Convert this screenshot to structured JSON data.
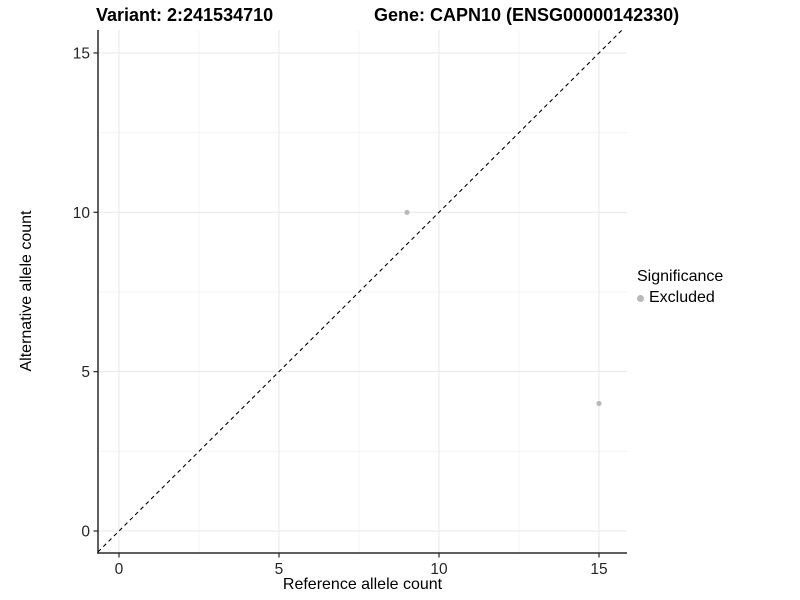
{
  "chart_data": {
    "type": "scatter",
    "titles": {
      "left": "Variant: 2:241534710",
      "right": "Gene: CAPN10 (ENSG00000142330)"
    },
    "xlabel": "Reference allele count",
    "ylabel": "Alternative allele count",
    "xlim": [
      -0.656,
      15.875
    ],
    "ylim": [
      -0.69,
      15.72
    ],
    "x_ticks": [
      0,
      5,
      10,
      15
    ],
    "y_ticks": [
      0,
      5,
      10,
      15
    ],
    "x_minor_ticks": [
      2.5,
      7.5,
      12.5
    ],
    "y_minor_ticks": [
      2.5,
      7.5,
      12.5
    ],
    "grid": "major+minor",
    "series": [
      {
        "name": "Excluded",
        "color": "#b9b9b9",
        "points": [
          {
            "x": 9,
            "y": 10
          },
          {
            "x": 15,
            "y": 4
          }
        ]
      }
    ],
    "identity_line": {
      "style": "dashed",
      "color": "#000000",
      "slope": 1,
      "intercept": 0
    },
    "legend": {
      "title": "Significance",
      "position": "right",
      "items": [
        {
          "label": "Excluded",
          "color": "#b9b9b9"
        }
      ]
    },
    "colors": {
      "background": "#ffffff",
      "grid_major": "#e8e8e8",
      "grid_minor": "#f4f4f4",
      "axis_line": "#2b2b2b",
      "tick_mark": "#262626",
      "tick_label": "#262626",
      "point": "#b9b9b9"
    }
  }
}
